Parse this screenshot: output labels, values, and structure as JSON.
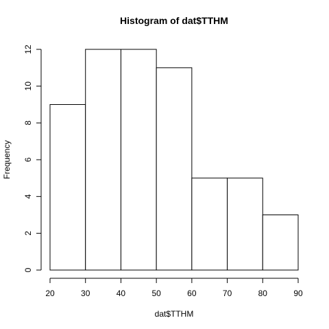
{
  "chart_data": {
    "type": "bar",
    "title": "Histogram of dat$TTHM",
    "xlabel": "dat$TTHM",
    "ylabel": "Frequency",
    "bins": [
      {
        "start": 20,
        "end": 30,
        "count": 9
      },
      {
        "start": 30,
        "end": 40,
        "count": 12
      },
      {
        "start": 40,
        "end": 50,
        "count": 12
      },
      {
        "start": 50,
        "end": 60,
        "count": 11
      },
      {
        "start": 60,
        "end": 70,
        "count": 5
      },
      {
        "start": 70,
        "end": 80,
        "count": 5
      },
      {
        "start": 80,
        "end": 90,
        "count": 3
      }
    ],
    "xlim": [
      20,
      90
    ],
    "ylim": [
      0,
      12
    ],
    "x_ticks": [
      "20",
      "30",
      "40",
      "50",
      "60",
      "70",
      "80",
      "90"
    ],
    "y_ticks": [
      "0",
      "2",
      "4",
      "6",
      "8",
      "10",
      "12"
    ],
    "grid": false,
    "legend": "none"
  }
}
